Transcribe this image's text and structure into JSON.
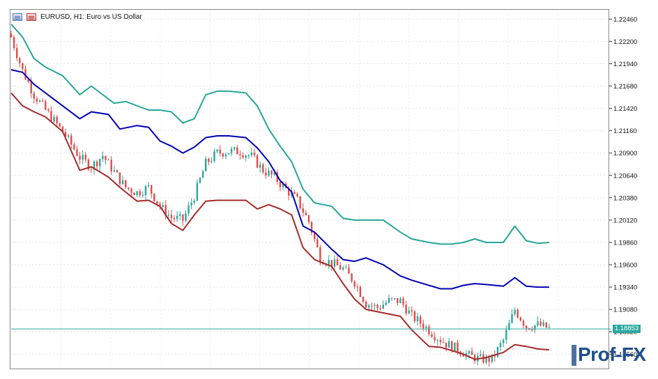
{
  "window": {
    "title": "EURUSD, H1:  Euro vs US Dollar",
    "current_price_label": "1.18853",
    "watermark": "Prof-FX"
  },
  "colors": {
    "upper_band": "#26a69a",
    "middle_band": "#0000b4",
    "lower_band": "#a52a2a",
    "candle_up": "#26a69a",
    "candle_down": "#e04a4a",
    "price_line": "#2aa8a0"
  },
  "chart_data": {
    "type": "line",
    "symbol": "EURUSD",
    "timeframe": "H1",
    "y_axis": {
      "min": 1.184,
      "max": 1.2256,
      "ticks": [
        "1.22460",
        "1.22200",
        "1.21940",
        "1.21680",
        "1.21420",
        "1.21160",
        "1.20900",
        "1.20640",
        "1.20380",
        "1.20120",
        "1.19860",
        "1.19600",
        "1.19340",
        "1.19080",
        "1.18820",
        "1.18560"
      ]
    },
    "current_price": 1.18853,
    "x_count": 190,
    "series": [
      {
        "name": "",
        "role": "upper",
        "x": [
          0,
          4,
          8,
          12,
          18,
          24,
          28,
          36,
          40,
          48,
          52,
          56,
          60,
          64,
          68,
          72,
          76,
          82,
          86,
          90,
          94,
          98,
          102,
          106,
          112,
          116,
          120,
          124,
          130,
          136,
          140,
          146,
          150,
          154,
          158,
          162,
          166,
          172,
          176,
          180,
          184,
          188
        ],
        "values": [
          1.224,
          1.2225,
          1.22,
          1.219,
          1.218,
          1.2158,
          1.2168,
          1.2148,
          1.215,
          1.214,
          1.214,
          1.2138,
          1.2125,
          1.213,
          1.2158,
          1.2162,
          1.2162,
          1.216,
          1.2145,
          1.2118,
          1.2098,
          1.208,
          1.2048,
          1.2032,
          1.2028,
          1.2014,
          1.2012,
          1.2012,
          1.2012,
          1.1998,
          1.199,
          1.1986,
          1.1984,
          1.1984,
          1.1986,
          1.199,
          1.1986,
          1.1986,
          1.2005,
          1.1988,
          1.1985,
          1.1986
        ]
      },
      {
        "name": "",
        "role": "middle",
        "x": [
          0,
          4,
          8,
          12,
          18,
          24,
          28,
          34,
          38,
          44,
          48,
          52,
          56,
          60,
          64,
          68,
          72,
          76,
          82,
          86,
          90,
          94,
          98,
          102,
          106,
          112,
          116,
          120,
          124,
          130,
          136,
          140,
          146,
          150,
          154,
          158,
          162,
          166,
          172,
          176,
          180,
          184,
          188
        ],
        "values": [
          1.2187,
          1.2184,
          1.217,
          1.216,
          1.2145,
          1.213,
          1.2138,
          1.2135,
          1.2118,
          1.2122,
          1.212,
          1.2104,
          1.2098,
          1.209,
          1.2097,
          1.2108,
          1.211,
          1.211,
          1.2108,
          1.2096,
          1.208,
          1.2058,
          1.2045,
          1.2005,
          1.1998,
          1.1978,
          1.1966,
          1.1964,
          1.1968,
          1.196,
          1.1947,
          1.1942,
          1.1936,
          1.1932,
          1.1932,
          1.1936,
          1.1938,
          1.1937,
          1.1935,
          1.1945,
          1.1935,
          1.1934,
          1.1934
        ]
      },
      {
        "name": "",
        "role": "lower",
        "x": [
          0,
          4,
          8,
          12,
          18,
          24,
          28,
          34,
          38,
          44,
          48,
          52,
          56,
          60,
          64,
          68,
          72,
          76,
          82,
          86,
          90,
          94,
          98,
          102,
          106,
          112,
          116,
          120,
          124,
          130,
          136,
          140,
          146,
          150,
          154,
          158,
          162,
          166,
          172,
          176,
          180,
          184,
          188
        ],
        "values": [
          1.216,
          1.2145,
          1.2138,
          1.2132,
          1.2115,
          1.207,
          1.2074,
          1.2062,
          1.205,
          1.2034,
          1.2035,
          1.2028,
          1.2008,
          1.2,
          1.2018,
          1.2034,
          1.2035,
          1.2035,
          1.2035,
          1.2025,
          1.203,
          1.2025,
          1.2018,
          1.198,
          1.1966,
          1.1958,
          1.1938,
          1.192,
          1.1908,
          1.1904,
          1.19,
          1.1884,
          1.1865,
          1.1864,
          1.186,
          1.1856,
          1.185,
          1.1852,
          1.1858,
          1.1867,
          1.1865,
          1.1862,
          1.1861
        ]
      },
      {
        "name": "",
        "role": "close",
        "x": [
          0,
          4,
          8,
          12,
          18,
          24,
          28,
          32,
          36,
          40,
          44,
          48,
          52,
          56,
          60,
          64,
          68,
          72,
          76,
          80,
          84,
          88,
          92,
          96,
          100,
          104,
          108,
          112,
          116,
          120,
          124,
          128,
          132,
          136,
          140,
          144,
          148,
          152,
          156,
          160,
          164,
          168,
          172,
          176,
          180,
          184,
          188
        ],
        "values": [
          1.2225,
          1.2186,
          1.2158,
          1.214,
          1.2115,
          1.2085,
          1.2074,
          1.2087,
          1.2068,
          1.205,
          1.2044,
          1.205,
          1.2028,
          1.2015,
          1.2012,
          1.204,
          1.2078,
          1.209,
          1.2092,
          1.2092,
          1.2086,
          1.207,
          1.2062,
          1.2048,
          1.2035,
          1.201,
          1.1968,
          1.1962,
          1.1955,
          1.194,
          1.1915,
          1.191,
          1.1918,
          1.1918,
          1.19,
          1.189,
          1.1878,
          1.1868,
          1.1862,
          1.1854,
          1.185,
          1.185,
          1.1872,
          1.1908,
          1.1888,
          1.189,
          1.1886
        ]
      }
    ],
    "grid": true,
    "legend": "none"
  }
}
